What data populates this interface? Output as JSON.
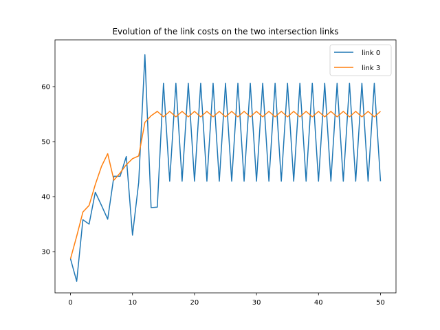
{
  "chart_data": {
    "type": "line",
    "title": "Evolution of the link costs on the two intersection links",
    "xlabel": "",
    "ylabel": "",
    "xlim": [
      -2.5,
      52.5
    ],
    "ylim": [
      22.5,
      68.5
    ],
    "xticks": [
      0,
      10,
      20,
      30,
      40,
      50
    ],
    "yticks": [
      30,
      40,
      50,
      60
    ],
    "grid": false,
    "legend_position": "top-right",
    "x": [
      0,
      1,
      2,
      3,
      4,
      5,
      6,
      7,
      8,
      9,
      10,
      11,
      12,
      13,
      14,
      15,
      16,
      17,
      18,
      19,
      20,
      21,
      22,
      23,
      24,
      25,
      26,
      27,
      28,
      29,
      30,
      31,
      32,
      33,
      34,
      35,
      36,
      37,
      38,
      39,
      40,
      41,
      42,
      43,
      44,
      45,
      46,
      47,
      48,
      49,
      50
    ],
    "series": [
      {
        "name": "link 0",
        "color": "#1f77b4",
        "values": [
          28.7,
          24.6,
          35.8,
          35.0,
          40.8,
          38.4,
          35.9,
          43.7,
          43.7,
          47.3,
          33.0,
          42.6,
          65.8,
          38.0,
          38.1,
          60.6,
          42.8,
          60.6,
          42.8,
          60.6,
          42.8,
          60.6,
          42.8,
          60.6,
          42.8,
          60.6,
          42.8,
          60.6,
          42.8,
          60.6,
          42.8,
          60.6,
          42.8,
          60.6,
          42.8,
          60.6,
          42.8,
          60.6,
          42.8,
          60.6,
          42.8,
          60.6,
          42.8,
          60.6,
          42.8,
          60.6,
          42.8,
          60.6,
          42.8,
          60.6,
          42.8
        ]
      },
      {
        "name": "link 3",
        "color": "#ff7f0e",
        "values": [
          28.7,
          32.8,
          37.2,
          38.4,
          42.2,
          45.5,
          47.8,
          43.0,
          44.3,
          45.8,
          46.9,
          47.4,
          53.5,
          54.7,
          55.5,
          54.5,
          55.5,
          54.5,
          55.5,
          54.5,
          55.5,
          54.5,
          55.5,
          54.5,
          55.5,
          54.5,
          55.5,
          54.5,
          55.5,
          54.5,
          55.5,
          54.5,
          55.5,
          54.5,
          55.5,
          54.5,
          55.5,
          54.5,
          55.5,
          54.5,
          55.5,
          54.5,
          55.5,
          54.5,
          55.5,
          54.5,
          55.5,
          54.5,
          55.5,
          54.5,
          55.5
        ]
      }
    ]
  }
}
